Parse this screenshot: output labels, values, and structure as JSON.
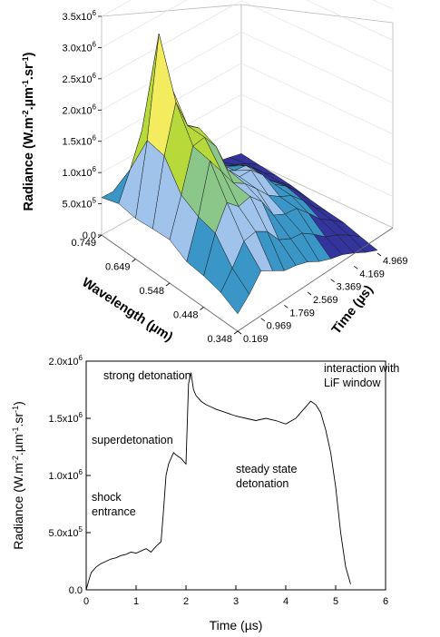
{
  "chart_data": [
    {
      "type": "surface",
      "zlabel": "Radiance (W.m-2.µm-1.sr-1)",
      "xlabel": "Wavelength (µm)",
      "ylabel": "Time (µs)",
      "z_ticks": [
        "0.0",
        "5.0x10",
        "1.0x10",
        "1.5x10",
        "2.0x10",
        "2.5x10",
        "3.0x10",
        "3.5x10"
      ],
      "z_tick_exponents": [
        "",
        "5",
        "6",
        "6",
        "6",
        "6",
        "6",
        "6"
      ],
      "zlim": [
        0,
        3500000
      ],
      "wavelength_ticks": [
        "0.749",
        "0.649",
        "0.548",
        "0.448",
        "0.348"
      ],
      "time_ticks": [
        "0.169",
        "0.969",
        "1.769",
        "2.569",
        "3.369",
        "4.169",
        "4.969"
      ],
      "wavelengths": [
        0.749,
        0.649,
        0.548,
        0.448,
        0.348
      ],
      "times": [
        0.169,
        0.969,
        1.769,
        2.569,
        3.369,
        4.169,
        4.969
      ],
      "values": [
        [
          600000,
          500000,
          450000,
          350000,
          250000,
          150000,
          50000
        ],
        [
          700000,
          3000000,
          1900000,
          1000000,
          700000,
          400000,
          100000
        ],
        [
          650000,
          2100000,
          1700000,
          1100000,
          900000,
          500000,
          100000
        ],
        [
          500000,
          1500000,
          1300000,
          900000,
          700000,
          400000,
          100000
        ],
        [
          300000,
          700000,
          600000,
          450000,
          350000,
          200000,
          50000
        ]
      ],
      "peak_value": 3400000,
      "color_bands": [
        "#34349f",
        "#3a96c6",
        "#9fc3ea",
        "#8cc78a",
        "#b8d93a",
        "#f2ec5e",
        "#d6a03c",
        "#cf1a3c"
      ]
    },
    {
      "type": "line",
      "xlabel": "Time (µs)",
      "ylabel": "Radiance (W.m-2.µm-1.sr-1)",
      "xlim": [
        0,
        6
      ],
      "ylim": [
        0,
        2000000
      ],
      "x_ticks": [
        "0",
        "1",
        "2",
        "3",
        "4",
        "5",
        "6"
      ],
      "y_ticks": [
        "0.0",
        "5.0x10",
        "1.0x10",
        "1.5x10",
        "2.0x10"
      ],
      "y_tick_exponents": [
        "",
        "5",
        "6",
        "6",
        "6"
      ],
      "series": [
        {
          "x": [
            0,
            0.05,
            0.1,
            0.2,
            0.3,
            0.4,
            0.5,
            0.6,
            0.7,
            0.8,
            0.9,
            1.0,
            1.1,
            1.2,
            1.3,
            1.4,
            1.5,
            1.55,
            1.6,
            1.65,
            1.7,
            1.75,
            1.8,
            1.9,
            2.0,
            2.05,
            2.1,
            2.15,
            2.2,
            2.3,
            2.4,
            2.5,
            2.6,
            2.8,
            3.0,
            3.2,
            3.4,
            3.6,
            3.8,
            4.0,
            4.2,
            4.3,
            4.4,
            4.5,
            4.6,
            4.7,
            4.8,
            4.9,
            5.0,
            5.1,
            5.2,
            5.3
          ],
          "y": [
            0,
            80000,
            150000,
            200000,
            230000,
            250000,
            270000,
            280000,
            300000,
            310000,
            330000,
            320000,
            340000,
            360000,
            330000,
            380000,
            420000,
            700000,
            1000000,
            1100000,
            1150000,
            1200000,
            1180000,
            1150000,
            1100000,
            1800000,
            1900000,
            1750000,
            1700000,
            1650000,
            1620000,
            1600000,
            1580000,
            1550000,
            1520000,
            1500000,
            1480000,
            1500000,
            1480000,
            1450000,
            1500000,
            1550000,
            1600000,
            1650000,
            1620000,
            1550000,
            1400000,
            1200000,
            900000,
            500000,
            200000,
            50000
          ]
        }
      ],
      "annotations": [
        "strong detonation",
        "interaction with",
        "LiF window",
        "superdetonation",
        "steady state",
        "detonation",
        "shock",
        "entrance"
      ]
    }
  ]
}
